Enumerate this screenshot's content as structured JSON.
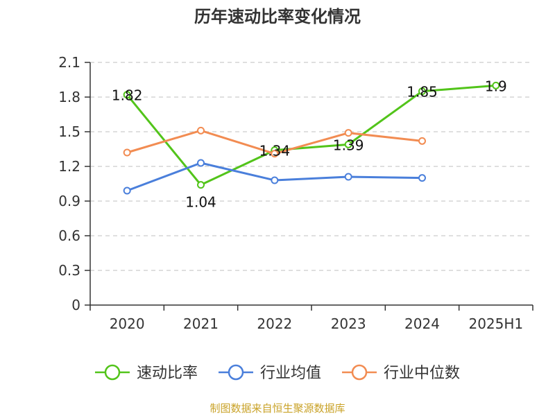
{
  "title": "历年速动比率变化情况",
  "source": "制图数据来自恒生聚源数据库",
  "colors": {
    "grid": "#cccccc",
    "axis": "#333333"
  },
  "chart_data": {
    "type": "line",
    "categories": [
      "2020",
      "2021",
      "2022",
      "2023",
      "2024",
      "2025H1"
    ],
    "ylim": [
      0,
      2.1
    ],
    "yticks": [
      "0",
      "0.3",
      "0.6",
      "0.9",
      "1.2",
      "1.5",
      "1.8",
      "2.1"
    ],
    "grid": true,
    "legend_position": "bottom",
    "series": [
      {
        "name": "速动比率",
        "color": "#52c41a",
        "values": [
          1.82,
          1.04,
          1.34,
          1.39,
          1.85,
          1.9
        ],
        "labels": [
          "1.82",
          "1.04",
          "1.34",
          "1.39",
          "1.85",
          "1.9"
        ]
      },
      {
        "name": "行业均值",
        "color": "#4a7fdb",
        "values": [
          0.99,
          1.23,
          1.08,
          1.11,
          1.1,
          null
        ],
        "labels": []
      },
      {
        "name": "行业中位数",
        "color": "#f28c52",
        "values": [
          1.32,
          1.51,
          1.31,
          1.49,
          1.42,
          null
        ],
        "labels": []
      }
    ]
  }
}
